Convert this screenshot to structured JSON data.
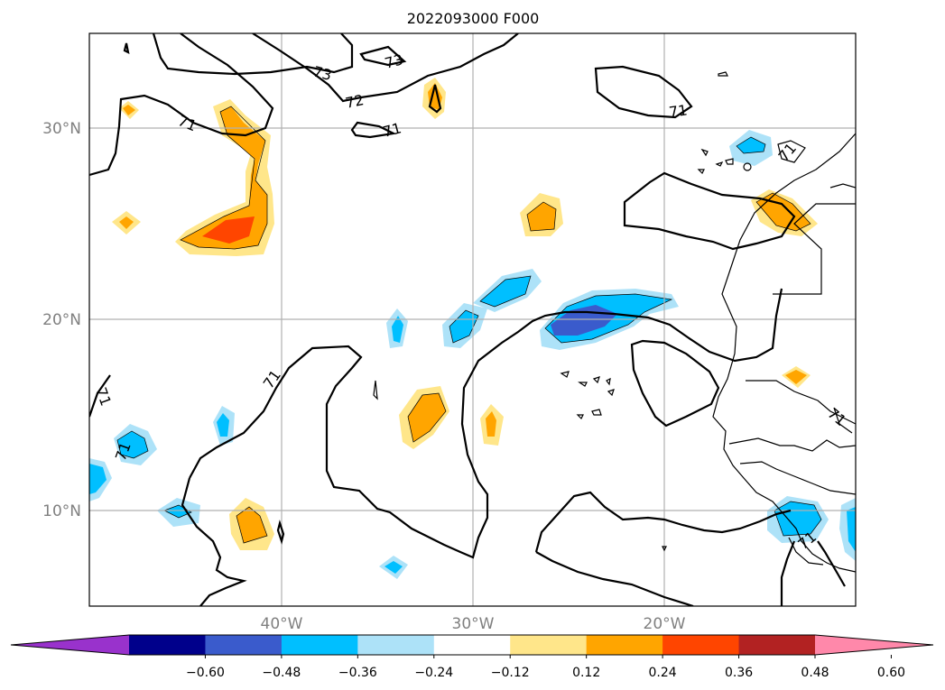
{
  "title": "2022093000 F000",
  "map": {
    "lat_labels": [
      "30°N",
      "20°N",
      "10°N"
    ],
    "lon_labels": [
      "40°W",
      "30°W",
      "20°W"
    ],
    "contour_labels": [
      "73",
      "73",
      "72",
      "71",
      "71",
      "71",
      "71",
      "71",
      "71",
      "71",
      "71",
      "71"
    ]
  },
  "colorbar": {
    "ticks": [
      "−0.60",
      "−0.48",
      "−0.36",
      "−0.24",
      "−0.12",
      "0.12",
      "0.24",
      "0.36",
      "0.48",
      "0.60"
    ],
    "colors": [
      "#9932CC",
      "#00008B",
      "#3A5BCC",
      "#00BFFF",
      "#ADE2F8",
      "#FFFFFF",
      "#FFE68A",
      "#FFA500",
      "#FF4500",
      "#B22222",
      "#FF88AA"
    ]
  }
}
